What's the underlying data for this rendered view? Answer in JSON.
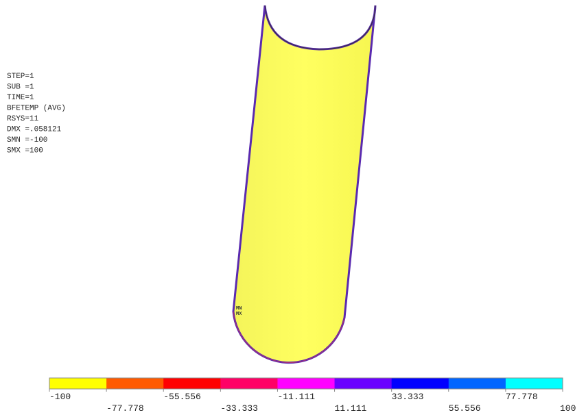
{
  "info": [
    "STEP=1",
    "SUB =1",
    "TIME=1",
    "BFETEMP  (AVG)",
    "RSYS=11",
    "DMX =.058121",
    "SMN =-100",
    "SMX =100"
  ],
  "markers": [
    "MN",
    "MX"
  ],
  "legend": {
    "labels": [
      "-100",
      "-77.778",
      "-55.556",
      "-33.333",
      "-11.111",
      "11.111",
      "33.333",
      "55.556",
      "77.778",
      "100"
    ],
    "colors": [
      "#ffff00",
      "#ff5a00",
      "#ff0000",
      "#ff0066",
      "#ff00ff",
      "#6a00ff",
      "#0000ff",
      "#0066ff",
      "#00ffff"
    ]
  }
}
